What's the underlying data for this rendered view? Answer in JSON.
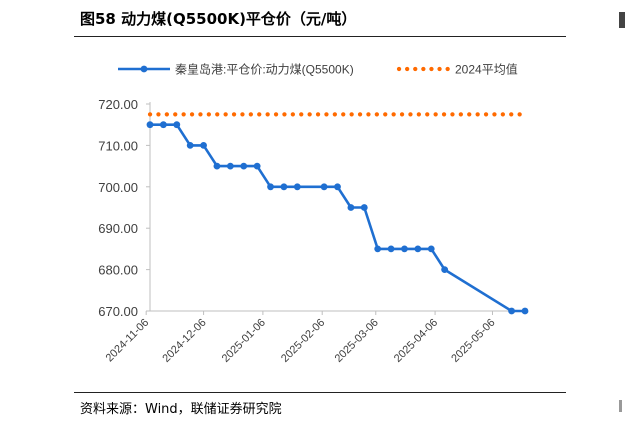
{
  "header": {
    "title": "图58 动力煤(Q5500K)平仓价（元/吨）"
  },
  "footer": {
    "source": "资料来源：Wind，联储证券研究院"
  },
  "chart_data": {
    "type": "line",
    "title": "图58 动力煤(Q5500K)平仓价（元/吨）",
    "xlabel": "",
    "ylabel": "",
    "ylim": [
      670,
      720
    ],
    "yticks": [
      "720.00",
      "710.00",
      "700.00",
      "690.00",
      "680.00",
      "670.00"
    ],
    "xticks": [
      "2024-11-06",
      "2024-12-06",
      "2025-01-06",
      "2025-02-06",
      "2025-03-06",
      "2025-04-06",
      "2025-05-06"
    ],
    "legend_position": "top",
    "colors": {
      "price": "#1f6fd1",
      "avg": "#ff6a00"
    },
    "series": [
      {
        "name": "秦皇岛港:平仓价:动力煤(Q5500K)",
        "style": "line-marker",
        "x": [
          "2024-11-08",
          "2024-11-15",
          "2024-11-22",
          "2024-11-29",
          "2024-12-06",
          "2024-12-13",
          "2024-12-20",
          "2024-12-27",
          "2025-01-03",
          "2025-01-10",
          "2025-01-17",
          "2025-01-24",
          "2025-02-07",
          "2025-02-14",
          "2025-02-21",
          "2025-02-28",
          "2025-03-07",
          "2025-03-14",
          "2025-03-21",
          "2025-03-28",
          "2025-04-04",
          "2025-04-11",
          "2025-05-16",
          "2025-05-23"
        ],
        "values": [
          715,
          715,
          715,
          710,
          710,
          705,
          705,
          705,
          705,
          700,
          700,
          700,
          700,
          700,
          695,
          695,
          685,
          685,
          685,
          685,
          685,
          680,
          670,
          670
        ]
      },
      {
        "name": "2024平均值",
        "style": "dotted",
        "x": [
          "2024-11-08",
          "2025-05-23"
        ],
        "values": [
          717.5,
          717.5
        ]
      }
    ]
  }
}
